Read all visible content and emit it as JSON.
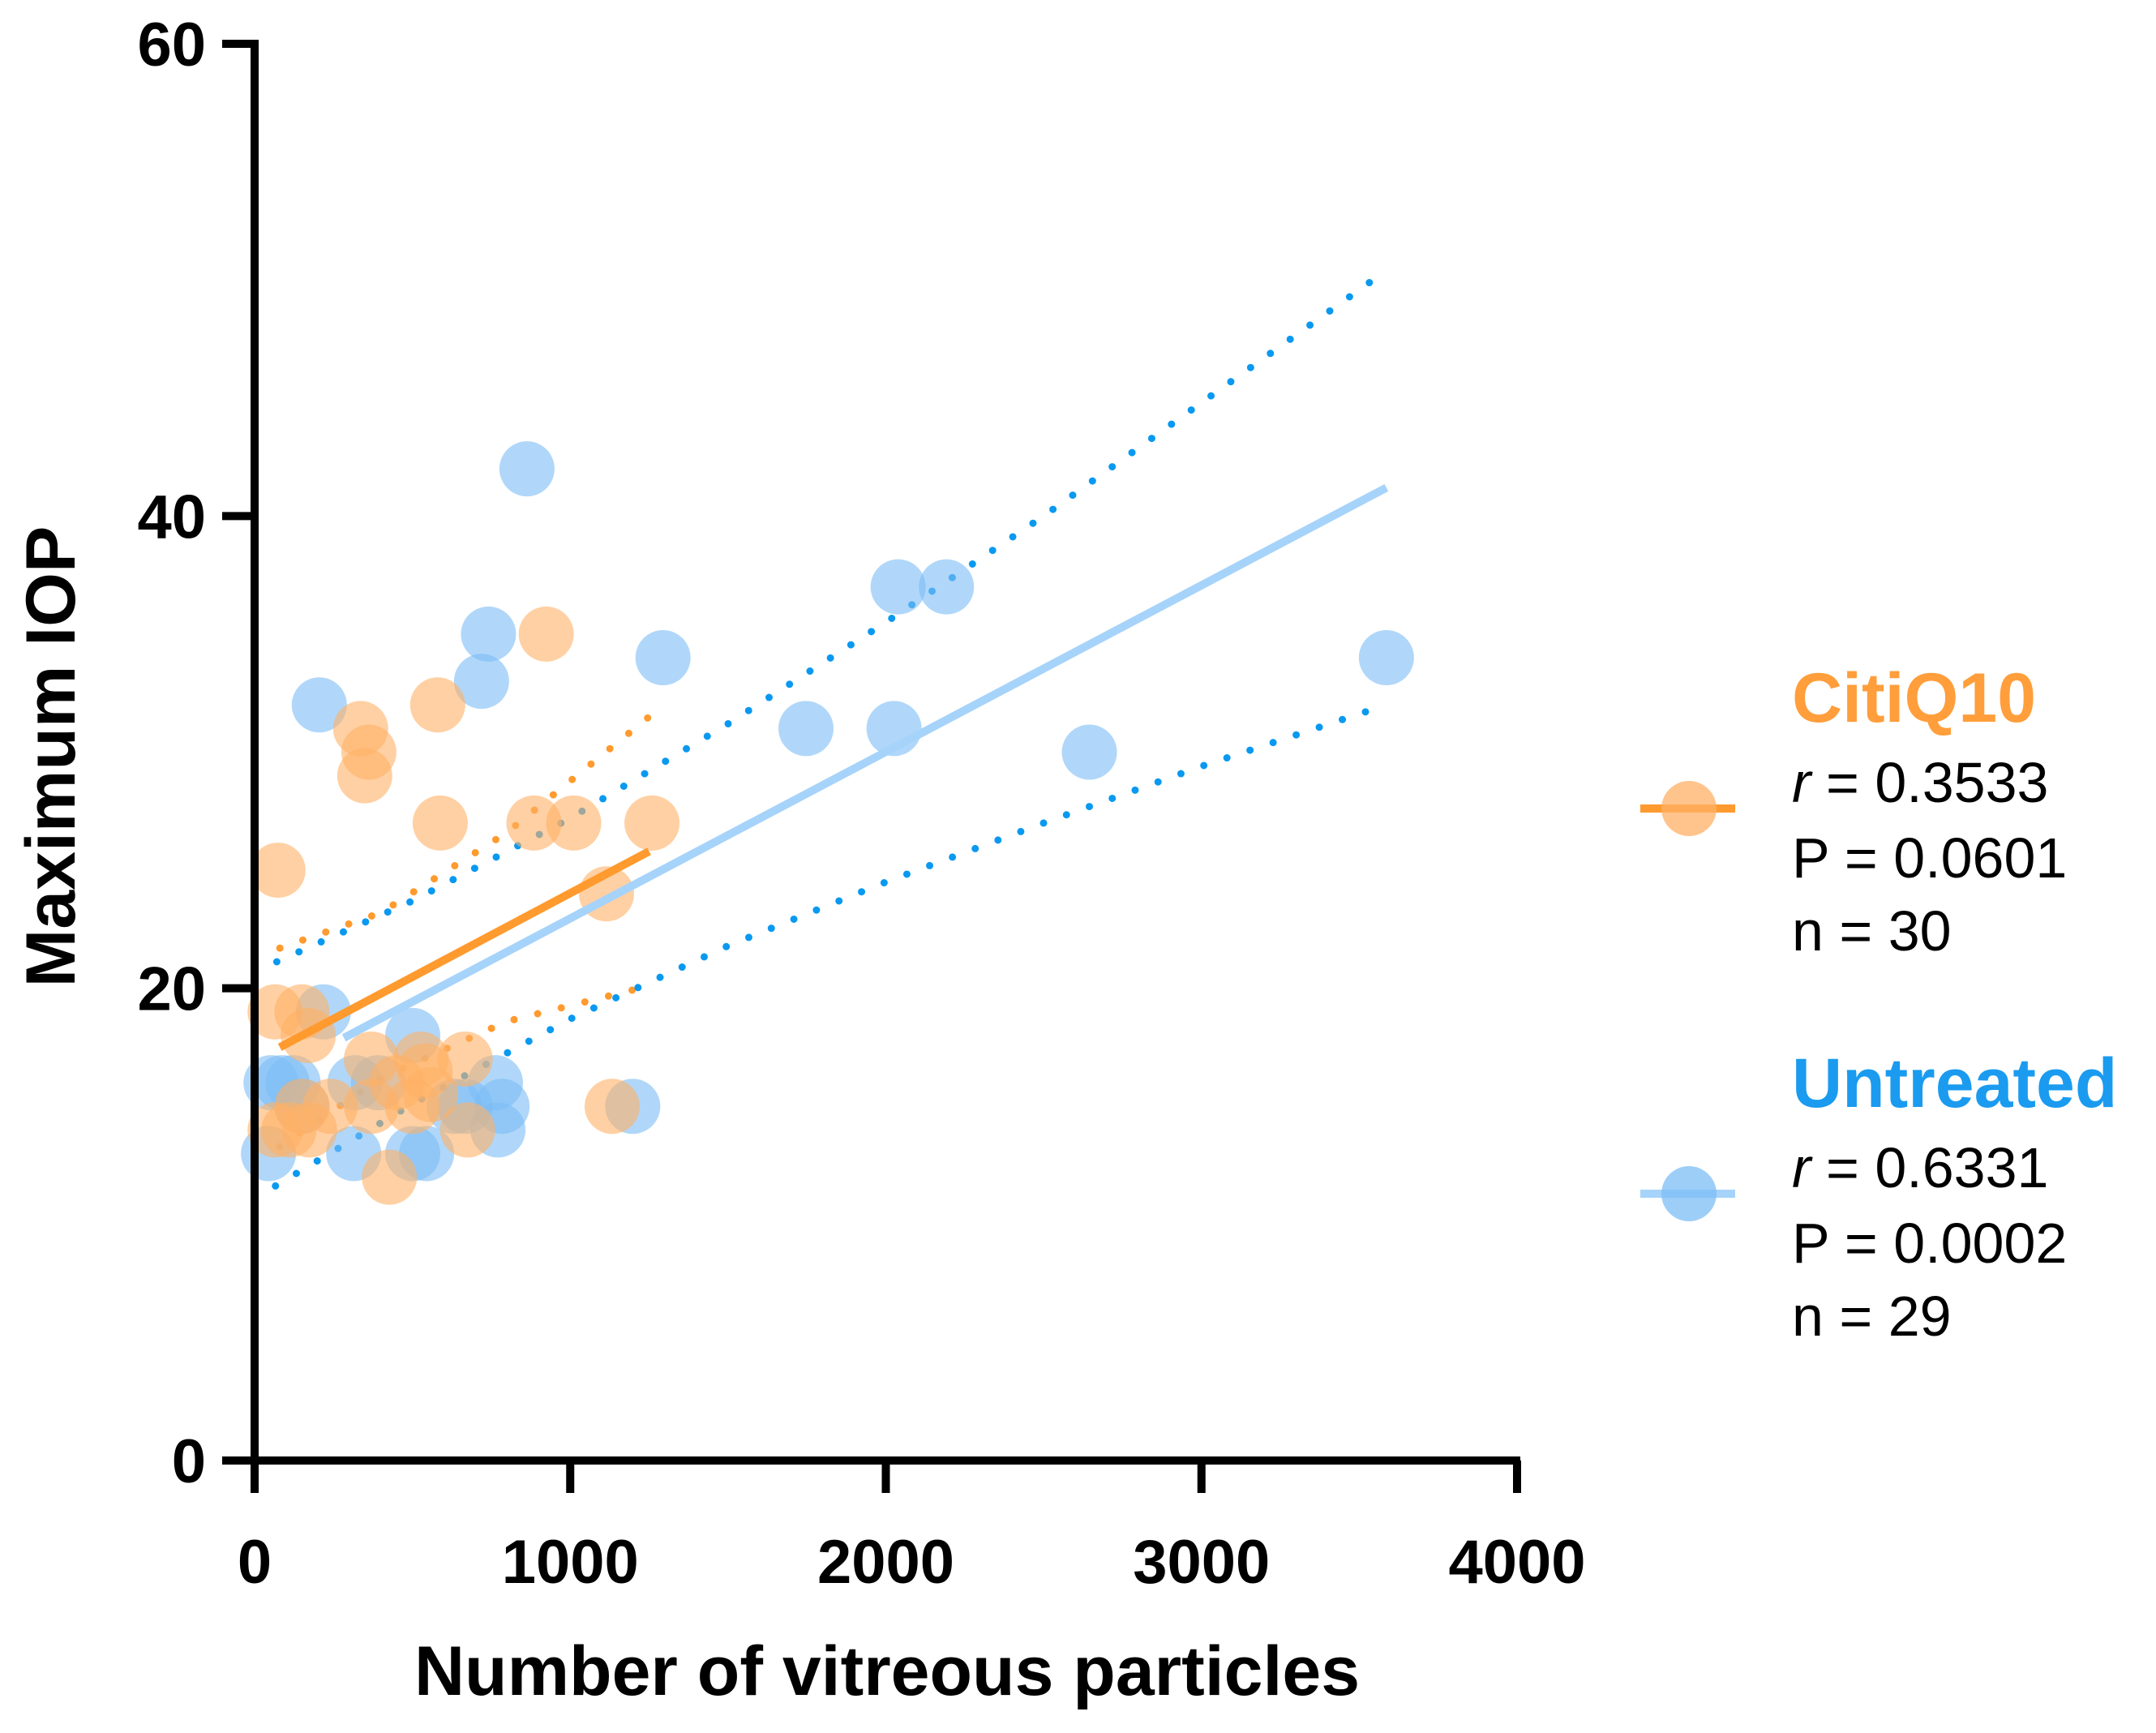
{
  "chart_data": {
    "type": "scatter",
    "title": "",
    "xlabel": "Number of vitreous particles",
    "ylabel": "Maximum IOP",
    "xlim": [
      0,
      4000
    ],
    "ylim": [
      0,
      60
    ],
    "x_ticks": [
      "0",
      "1000",
      "2000",
      "3000",
      "4000"
    ],
    "x_tick_values": [
      0,
      1000,
      2000,
      3000,
      4000
    ],
    "y_ticks": [
      "0",
      "20",
      "40",
      "60"
    ],
    "y_tick_values": [
      0,
      20,
      40,
      60
    ],
    "grid": false,
    "legend_position": "right",
    "series": [
      {
        "name": "CitiQ10",
        "color": "#FFB066",
        "line_color": "#FF9A2E",
        "stats": {
          "r_label": "r",
          "r": "= 0.3533",
          "p": "P = 0.0601",
          "n": "n = 30"
        },
        "x": [
          74,
          336,
          362,
          349,
          580,
          588,
          924,
          885,
          1011,
          1259,
          1115,
          65,
          150,
          170,
          370,
          667,
          527,
          370,
          558,
          1133,
          109,
          174,
          675,
          427,
          150,
          450,
          540,
          65,
          500,
          240
        ],
        "y": [
          25,
          31,
          30,
          29,
          32,
          27,
          35,
          27,
          27,
          27,
          24,
          19,
          19,
          18,
          17,
          17,
          17,
          15,
          15.5,
          15,
          14,
          14,
          14,
          12,
          15,
          16,
          16.5,
          14,
          15,
          15
        ],
        "fit": {
          "x": [
            80,
            1250
          ],
          "y": [
            17.5,
            25.8
          ]
        },
        "ci": {
          "x": [
            80,
            400,
            800,
            1250
          ],
          "upper": [
            21.7,
            23.2,
            26.6,
            31.5
          ],
          "lower": [
            13.3,
            16.2,
            18.6,
            20.1
          ]
        }
      },
      {
        "name": "Untreated",
        "color": "#7CBDF5",
        "line_color": "#A6D3FA",
        "dot_color": "#0A99F0",
        "stats": {
          "r_label": "r",
          "r": "= 0.6331",
          "p": "P = 0.0002",
          "n": "n = 29"
        },
        "x": [
          863,
          741,
          719,
          205,
          2039,
          2192,
          1294,
          1747,
          2026,
          2645,
          3586,
          218,
          501,
          52,
          122,
          318,
          763,
          784,
          1198,
          44,
          314,
          501,
          545,
          771,
          632,
          150,
          87,
          392,
          667
        ],
        "y": [
          42,
          35,
          33,
          32,
          37,
          37,
          34,
          31,
          31,
          30,
          34,
          19,
          18,
          16,
          16,
          16,
          16,
          15,
          15,
          13,
          13,
          13,
          13,
          14,
          15,
          15,
          16,
          16,
          15
        ],
        "fit": {
          "x": [
            283,
            3586
          ],
          "y": [
            17.9,
            41.2
          ]
        },
        "ci": {
          "x": [
            0,
            500,
            1000,
            1500,
            2000,
            2500,
            3000,
            3586
          ],
          "upper": [
            20.7,
            23.7,
            27.2,
            31.2,
            35.5,
            40.0,
            44.8,
            50.4
          ],
          "lower": [
            11.1,
            15.1,
            18.7,
            21.8,
            24.5,
            27.0,
            29.4,
            32.0
          ]
        }
      }
    ]
  }
}
